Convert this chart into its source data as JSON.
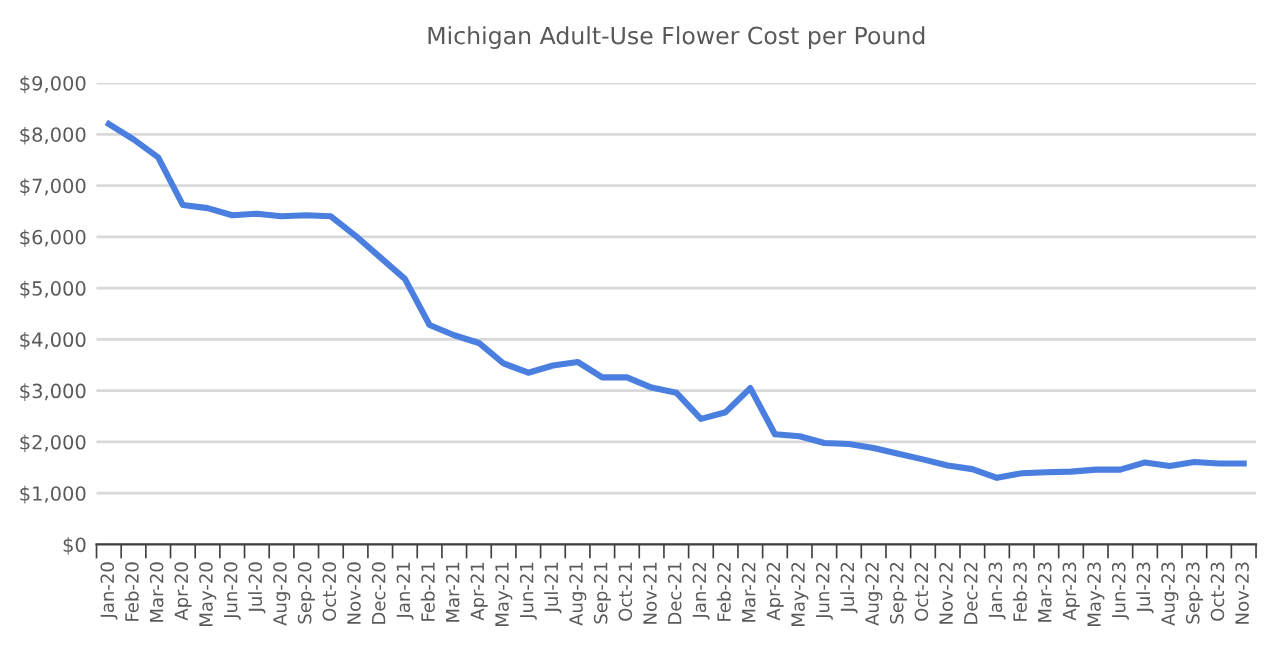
{
  "chart_data": {
    "type": "line",
    "title": "Michigan Adult-Use Flower Cost per Pound",
    "categories": [
      "Jan-20",
      "Feb-20",
      "Mar-20",
      "Apr-20",
      "May-20",
      "Jun-20",
      "Jul-20",
      "Aug-20",
      "Sep-20",
      "Oct-20",
      "Nov-20",
      "Dec-20",
      "Jan-21",
      "Feb-21",
      "Mar-21",
      "Apr-21",
      "May-21",
      "Jun-21",
      "Jul-21",
      "Aug-21",
      "Sep-21",
      "Oct-21",
      "Nov-21",
      "Dec-21",
      "Jan-22",
      "Feb-22",
      "Mar-22",
      "Apr-22",
      "May-22",
      "Jun-22",
      "Jul-22",
      "Aug-22",
      "Sep-22",
      "Oct-22",
      "Nov-22",
      "Dec-22",
      "Jan-23",
      "Feb-23",
      "Mar-23",
      "Apr-23",
      "May-23",
      "Jun-23",
      "Jul-23",
      "Aug-23",
      "Sep-23",
      "Oct-23",
      "Nov-23"
    ],
    "series": [
      {
        "color": "#4a7fe0",
        "values": [
          8200,
          7900,
          7550,
          6620,
          6560,
          6420,
          6450,
          6400,
          6420,
          6400,
          6020,
          5600,
          5180,
          4280,
          4080,
          3930,
          3530,
          3350,
          3490,
          3560,
          3260,
          3260,
          3060,
          2960,
          2450,
          2580,
          3050,
          2150,
          2110,
          1980,
          1960,
          1880,
          1770,
          1660,
          1540,
          1470,
          1300,
          1390,
          1410,
          1420,
          1460,
          1460,
          1600,
          1530,
          1610,
          1580,
          1580
        ]
      }
    ],
    "ylim": [
      0,
      9000
    ],
    "yticks": [
      {
        "value": 0,
        "label": "$0"
      },
      {
        "value": 1000,
        "label": "$1,000"
      },
      {
        "value": 2000,
        "label": "$2,000"
      },
      {
        "value": 3000,
        "label": "$3,000"
      },
      {
        "value": 4000,
        "label": "$4,000"
      },
      {
        "value": 5000,
        "label": "$5,000"
      },
      {
        "value": 6000,
        "label": "$6,000"
      },
      {
        "value": 7000,
        "label": "$7,000"
      },
      {
        "value": 8000,
        "label": "$8,000"
      },
      {
        "value": 9000,
        "label": "$9,000"
      }
    ],
    "grid": "y",
    "marker": "none",
    "line_style": "solid",
    "legend": false
  }
}
